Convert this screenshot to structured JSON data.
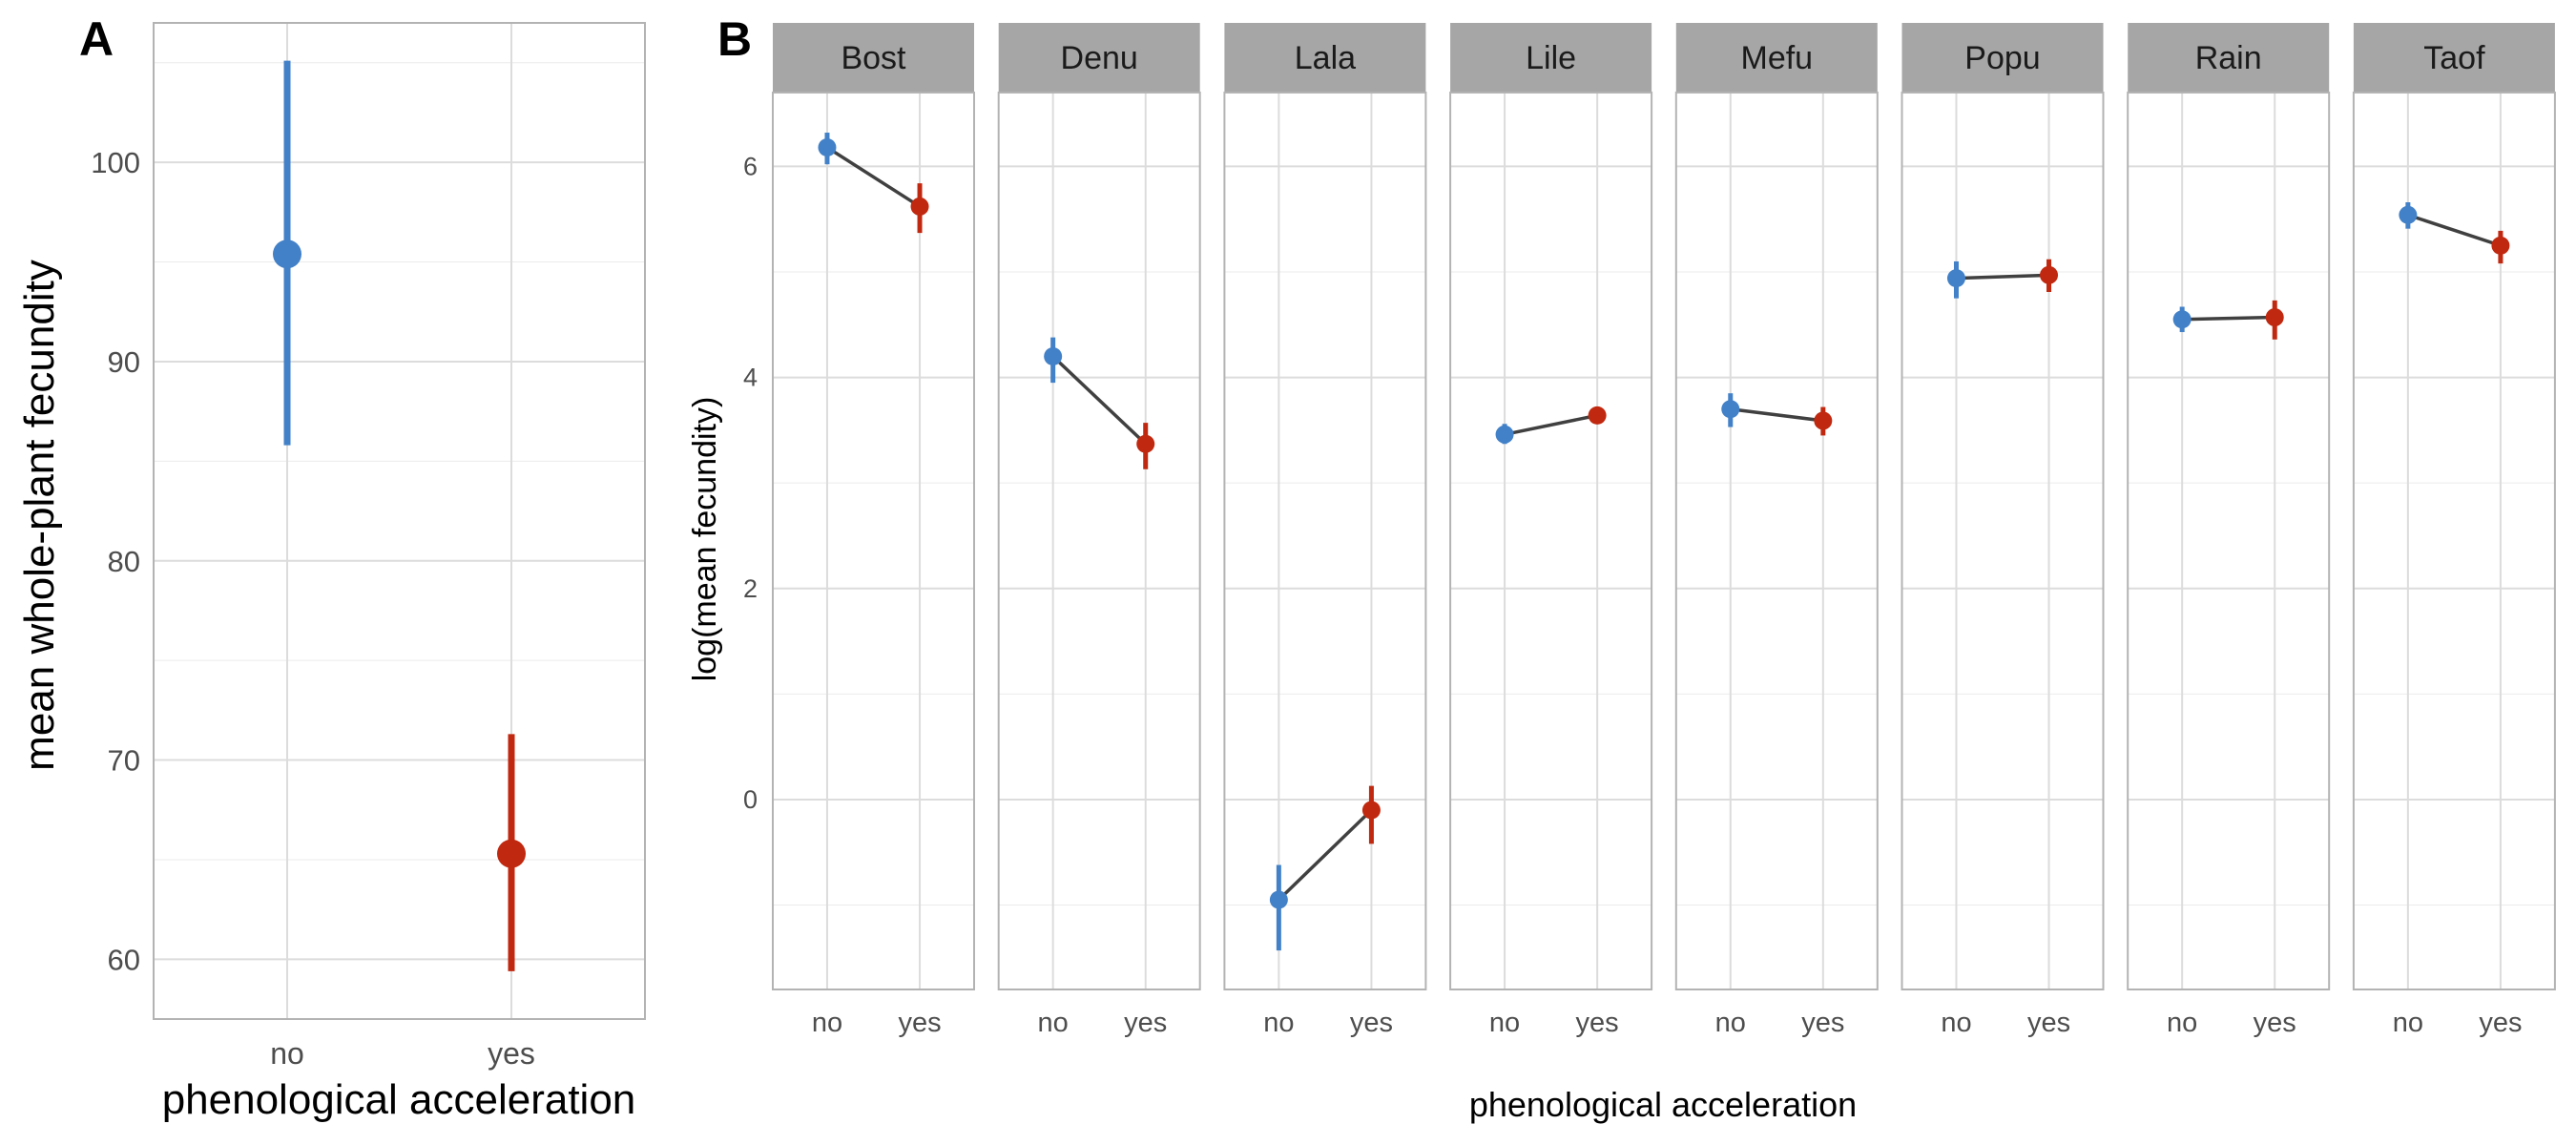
{
  "chart_data": [
    {
      "panel_label": "A",
      "type": "scatter",
      "categories": [
        "no",
        "yes"
      ],
      "series": [
        {
          "category": "no",
          "mean": 95.4,
          "lower": 85.8,
          "upper": 105.1,
          "color": "#4281C8"
        },
        {
          "category": "yes",
          "mean": 65.3,
          "lower": 59.4,
          "upper": 71.3,
          "color": "#C0280F"
        }
      ],
      "xlabel": "phenological acceleration",
      "ylabel": "mean whole-plant fecundity",
      "yticks": [
        "60",
        "70",
        "80",
        "90",
        "100"
      ],
      "ylim": [
        57,
        107
      ],
      "grid": true
    },
    {
      "panel_label": "B",
      "type": "line",
      "categories": [
        "no",
        "yes"
      ],
      "xlabel": "phenological acceleration",
      "ylabel": "log(mean fecundity)",
      "yticks": [
        "0",
        "2",
        "4",
        "6"
      ],
      "ylim": [
        -1.8,
        6.7
      ],
      "grid": true,
      "colors": {
        "no": "#4281C8",
        "yes": "#C0280F",
        "line": "#404040"
      },
      "facets": [
        {
          "name": "Bost",
          "no": {
            "mean": 6.18,
            "lower": 6.02,
            "upper": 6.32
          },
          "yes": {
            "mean": 5.62,
            "lower": 5.37,
            "upper": 5.84
          }
        },
        {
          "name": "Denu",
          "no": {
            "mean": 4.2,
            "lower": 3.95,
            "upper": 4.38
          },
          "yes": {
            "mean": 3.37,
            "lower": 3.13,
            "upper": 3.57
          }
        },
        {
          "name": "Lala",
          "no": {
            "mean": -0.95,
            "lower": -1.43,
            "upper": -0.62
          },
          "yes": {
            "mean": -0.1,
            "lower": -0.42,
            "upper": 0.13
          }
        },
        {
          "name": "Lile",
          "no": {
            "mean": 3.46,
            "lower": 3.37,
            "upper": 3.56
          },
          "yes": {
            "mean": 3.64,
            "lower": 3.56,
            "upper": 3.72
          }
        },
        {
          "name": "Mefu",
          "no": {
            "mean": 3.7,
            "lower": 3.53,
            "upper": 3.85
          },
          "yes": {
            "mean": 3.59,
            "lower": 3.45,
            "upper": 3.72
          }
        },
        {
          "name": "Popu",
          "no": {
            "mean": 4.94,
            "lower": 4.75,
            "upper": 5.1
          },
          "yes": {
            "mean": 4.97,
            "lower": 4.81,
            "upper": 5.12
          }
        },
        {
          "name": "Rain",
          "no": {
            "mean": 4.55,
            "lower": 4.43,
            "upper": 4.67
          },
          "yes": {
            "mean": 4.57,
            "lower": 4.36,
            "upper": 4.73
          }
        },
        {
          "name": "Taof",
          "no": {
            "mean": 5.54,
            "lower": 5.41,
            "upper": 5.66
          },
          "yes": {
            "mean": 5.25,
            "lower": 5.08,
            "upper": 5.39
          }
        }
      ]
    }
  ]
}
